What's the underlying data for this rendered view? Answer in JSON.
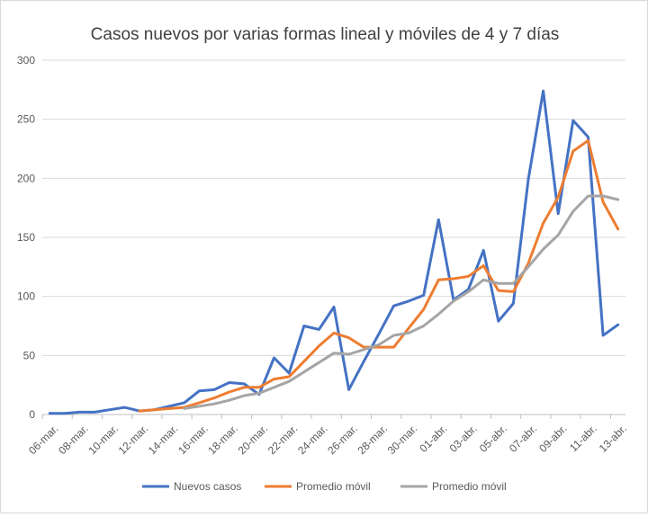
{
  "chart_data": {
    "type": "line",
    "title": "Casos nuevos por varias formas lineal y móviles de 4 y 7 días",
    "categories": [
      "06-mar.",
      "07-mar.",
      "08-mar.",
      "09-mar.",
      "10-mar.",
      "11-mar.",
      "12-mar.",
      "13-mar.",
      "14-mar.",
      "15-mar.",
      "16-mar.",
      "17-mar.",
      "18-mar.",
      "19-mar.",
      "20-mar.",
      "21-mar.",
      "22-mar.",
      "23-mar.",
      "24-mar.",
      "25-mar.",
      "26-mar.",
      "27-mar.",
      "28-mar.",
      "29-mar.",
      "30-mar.",
      "31-mar.",
      "01-abr.",
      "02-abr.",
      "03-abr.",
      "04-abr.",
      "05-abr.",
      "06-abr.",
      "07-abr.",
      "08-abr.",
      "09-abr.",
      "10-abr.",
      "11-abr.",
      "12-abr.",
      "13-abr."
    ],
    "tick_labels": [
      "06-mar.",
      "08-mar.",
      "10-mar.",
      "12-mar.",
      "14-mar.",
      "16-mar.",
      "18-mar.",
      "20-mar.",
      "22-mar.",
      "24-mar.",
      "26-mar.",
      "28-mar.",
      "30-mar.",
      "01-abr.",
      "03-abr.",
      "05-abr.",
      "07-abr.",
      "09-abr.",
      "11-abr.",
      "13-abr."
    ],
    "ylim": [
      0,
      300
    ],
    "yticks": [
      0,
      50,
      100,
      150,
      200,
      250,
      300
    ],
    "grid": true,
    "legend": "bottom",
    "series": [
      {
        "name": "Nuevos casos",
        "color": "#4472c4",
        "values": [
          1,
          1,
          2,
          2,
          4,
          6,
          3,
          4,
          7,
          10,
          20,
          21,
          27,
          26,
          17,
          48,
          35,
          75,
          72,
          91,
          21,
          45,
          68,
          92,
          96,
          101,
          165,
          97,
          106,
          139,
          79,
          94,
          199,
          274,
          170,
          249,
          235,
          67,
          76
        ]
      },
      {
        "name": "Promedio móvil",
        "color": "#ed7d31",
        "values": [
          null,
          null,
          null,
          null,
          null,
          null,
          3,
          4,
          5,
          6,
          10,
          14,
          19,
          23,
          23,
          30,
          32,
          45,
          58,
          69,
          65,
          57,
          57,
          57,
          73,
          89,
          114,
          115,
          117,
          126,
          105,
          104,
          128,
          162,
          184,
          223,
          232,
          180,
          157
        ]
      },
      {
        "name": "Promedio móvil",
        "color": "#a5a5a5",
        "values": [
          null,
          null,
          null,
          null,
          null,
          null,
          null,
          null,
          null,
          5,
          7,
          9,
          12,
          16,
          18,
          23,
          28,
          36,
          44,
          52,
          51,
          55,
          59,
          67,
          69,
          75,
          85,
          96,
          104,
          114,
          111,
          111,
          125,
          140,
          152,
          172,
          185,
          185,
          182
        ]
      }
    ]
  }
}
